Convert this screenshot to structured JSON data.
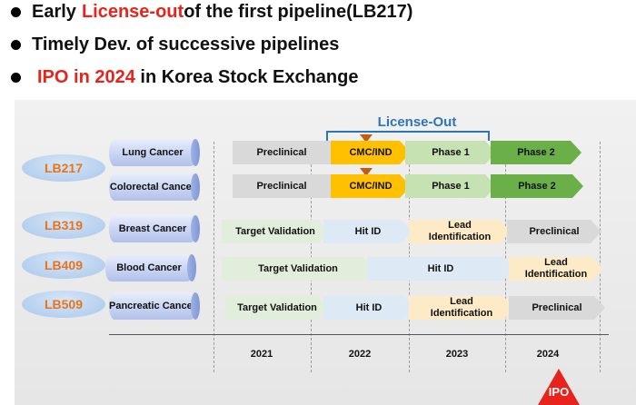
{
  "bullets": {
    "b1_pre": "Early ",
    "b1_highlight": "License-out",
    "b1_post": " of the first pipeline(LB217)",
    "b2": "Timely Dev. of successive pipelines",
    "b3_highlight": "IPO in 2024",
    "b3_post": " in Korea Stock Exchange"
  },
  "license_out_label": "License-Out",
  "years": [
    "2021",
    "2022",
    "2023",
    "2024"
  ],
  "pipelines": {
    "lb217": {
      "code": "LB217",
      "ind1": "Lung Cancer",
      "ind2": "Colorectal Cancer"
    },
    "lb319": {
      "code": "LB319",
      "ind": "Breast Cancer"
    },
    "lb409": {
      "code": "LB409",
      "ind": "Blood Cancer"
    },
    "lb509": {
      "code": "LB509",
      "ind": "Pancreatic Cancer"
    }
  },
  "stages": {
    "preclinical": "Preclinical",
    "cmc_ind": "CMC/IND",
    "phase1": "Phase 1",
    "phase2": "Phase 2",
    "target_validation": "Target Validation",
    "hit_id": "Hit ID",
    "lead_identification": "Lead Identification"
  },
  "ipo_badge": "IPO",
  "colors": {
    "accent_red": "#e8231b",
    "code_orange": "#e8741a",
    "license_blue": "#2e75b6",
    "cmc_orange": "#ffc000",
    "phase2_green": "#6aaf48"
  }
}
